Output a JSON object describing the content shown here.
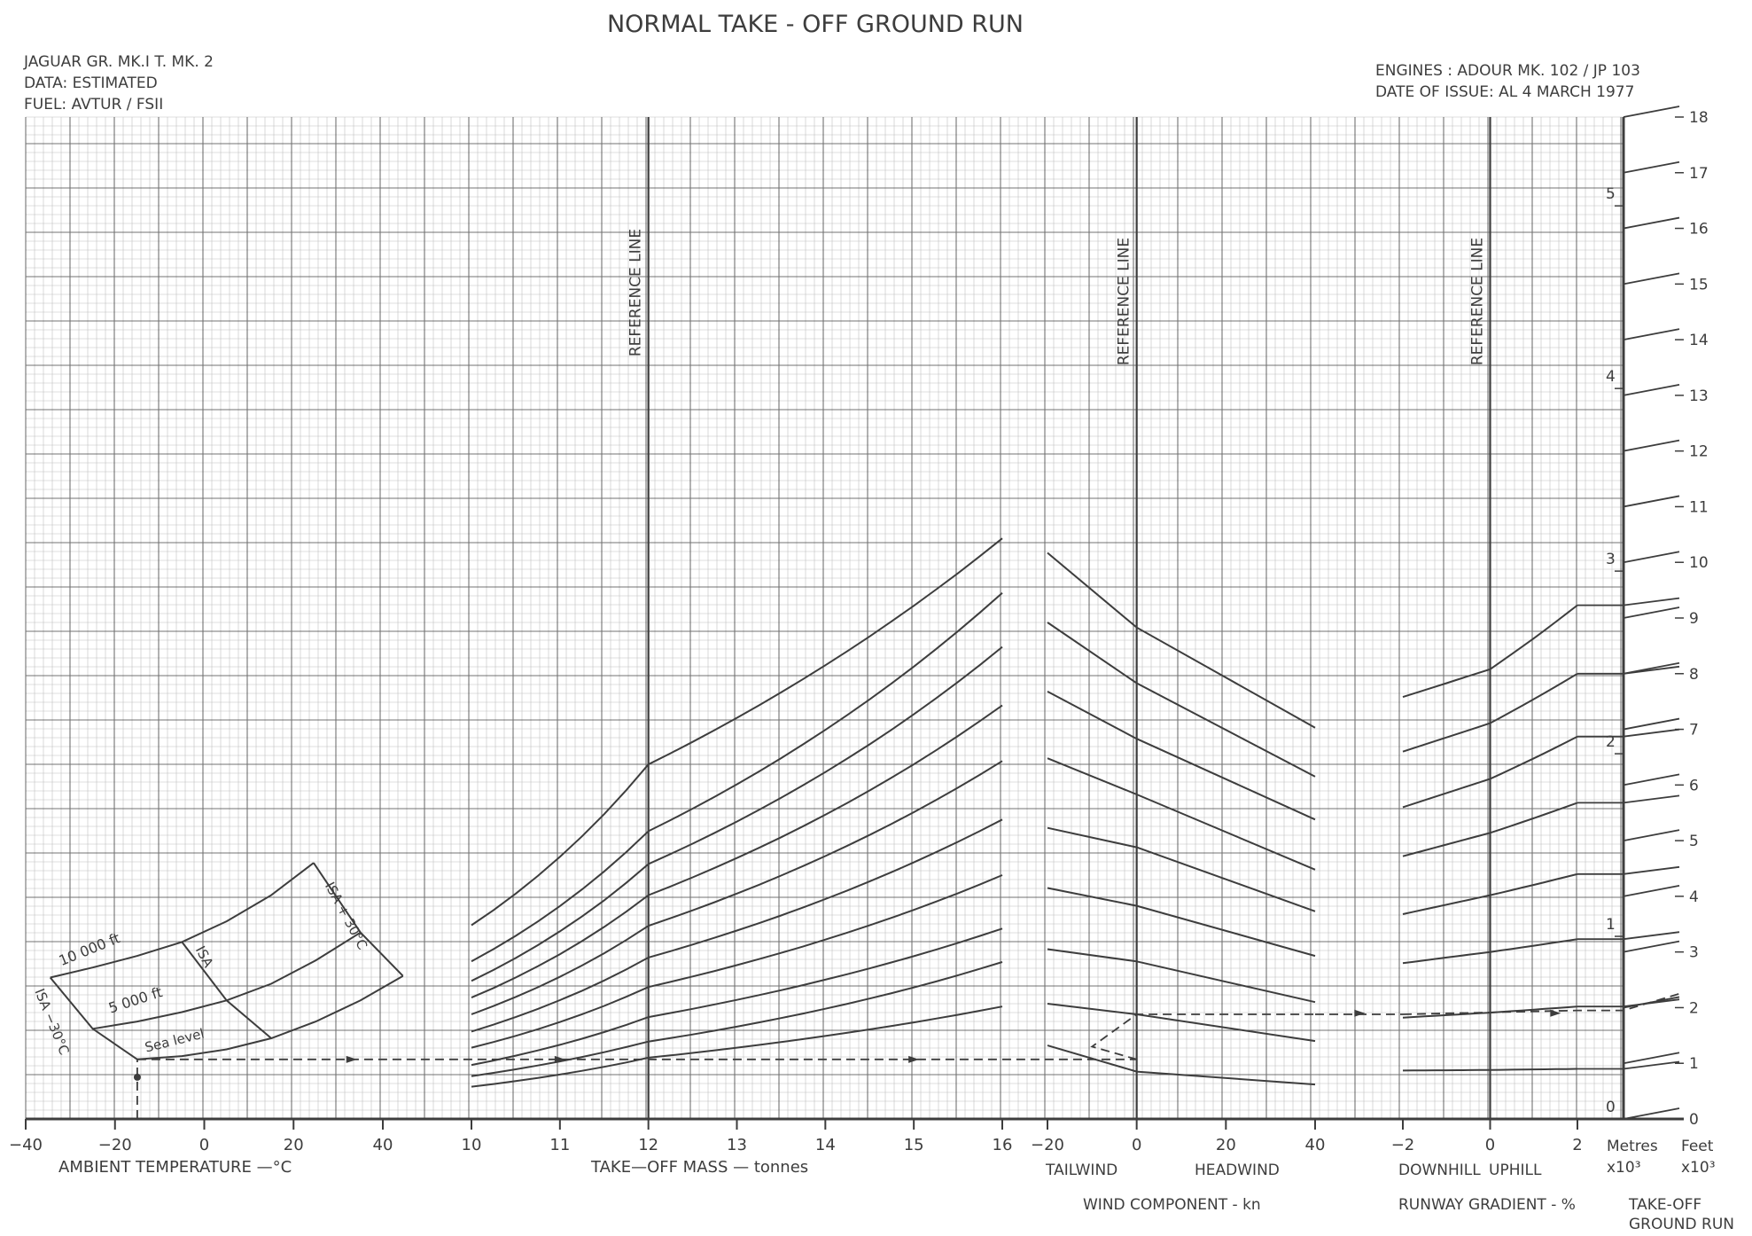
{
  "title": "NORMAL  TAKE - OFF  GROUND  RUN",
  "header_left": [
    "JAGUAR  GR. MK.I   T. MK. 2",
    "DATA: ESTIMATED",
    "FUEL: AVTUR / FSII"
  ],
  "header_right": [
    "ENGINES :  ADOUR   MK. 102 / JP 103",
    "DATE  OF  ISSUE:  AL 4    MARCH  1977"
  ],
  "reference_line_label": "REFERENCE   LINE",
  "colors": {
    "ink": "#3d3d3d",
    "grid_minor": "#8a8a8a",
    "grid_major": "#444444"
  },
  "chart_data": [
    {
      "type": "line",
      "panel": "temperature",
      "xlabel": "AMBIENT  TEMPERATURE  —°C",
      "xlim": [
        -40,
        45
      ],
      "x_ticks": [
        "−40",
        "−20",
        "0",
        "20",
        "40"
      ],
      "series": [
        {
          "name": "Sea  level",
          "points": [
            [
              -15,
              1.07
            ],
            [
              -5,
              1.13
            ],
            [
              5,
              1.25
            ],
            [
              15,
              1.45
            ],
            [
              25,
              1.75
            ],
            [
              35,
              2.13
            ],
            [
              44.5,
              2.57
            ]
          ]
        },
        {
          "name": "5 000  ft",
          "points": [
            [
              -25,
              1.62
            ],
            [
              -15,
              1.75
            ],
            [
              -5,
              1.92
            ],
            [
              5,
              2.13
            ],
            [
              15,
              2.43
            ],
            [
              25,
              2.85
            ],
            [
              35,
              3.35
            ]
          ]
        },
        {
          "name": "10 000  ft",
          "points": [
            [
              -34.5,
              2.54
            ],
            [
              -25,
              2.72
            ],
            [
              -15,
              2.93
            ],
            [
              -5,
              3.18
            ],
            [
              5,
              3.55
            ],
            [
              15,
              4.02
            ],
            [
              24.5,
              4.6
            ]
          ]
        }
      ],
      "isa_lines": [
        {
          "name": "ISA −30°C",
          "points": [
            [
              -34.5,
              2.54
            ],
            [
              -25,
              1.62
            ],
            [
              -15,
              1.07
            ]
          ]
        },
        {
          "name": "ISA",
          "points": [
            [
              -5,
              3.18
            ],
            [
              5,
              2.13
            ],
            [
              15,
              1.45
            ]
          ]
        },
        {
          "name": "ISA + 30°C",
          "points": [
            [
              24.5,
              4.6
            ],
            [
              35,
              3.35
            ],
            [
              44.5,
              2.57
            ]
          ]
        }
      ],
      "example_path": [
        [
          -15,
          0
        ],
        [
          -15,
          1.07
        ]
      ]
    },
    {
      "type": "line",
      "panel": "mass",
      "xlabel": "TAKE—OFF  MASS  —  tonnes",
      "xlim": [
        10,
        16
      ],
      "x_ticks": [
        "10",
        "11",
        "12",
        "13",
        "14",
        "15",
        "16"
      ],
      "reference_x": 12,
      "series": [
        {
          "left": 0.58,
          "ref": 1.1,
          "right": 2.02
        },
        {
          "left": 0.77,
          "ref": 1.39,
          "right": 2.82
        },
        {
          "left": 0.97,
          "ref": 1.83,
          "right": 3.42
        },
        {
          "left": 1.28,
          "ref": 2.37,
          "right": 4.38
        },
        {
          "left": 1.57,
          "ref": 2.9,
          "right": 5.38
        },
        {
          "left": 1.88,
          "ref": 3.47,
          "right": 6.43
        },
        {
          "left": 2.18,
          "ref": 4.02,
          "right": 7.43
        },
        {
          "left": 2.48,
          "ref": 4.58,
          "right": 8.48
        },
        {
          "left": 2.83,
          "ref": 5.17,
          "right": 9.45
        },
        {
          "left": 3.48,
          "ref": 6.37,
          "right": 10.43
        }
      ],
      "example_path": [
        [
          10,
          1.07
        ],
        [
          16,
          1.07
        ]
      ]
    },
    {
      "type": "line",
      "panel": "wind",
      "xlabel": "WIND  COMPONENT - kn",
      "xlim": [
        -20,
        40
      ],
      "x_ticks": [
        "−20",
        "0",
        "20",
        "40"
      ],
      "side_labels": [
        "TAILWIND",
        "HEADWIND"
      ],
      "reference_x": 0,
      "series": [
        {
          "tail": 1.32,
          "ref": 0.85,
          "head": 0.62
        },
        {
          "tail": 2.07,
          "ref": 1.88,
          "head": 1.4
        },
        {
          "tail": 3.05,
          "ref": 2.83,
          "head": 2.1
        },
        {
          "tail": 4.15,
          "ref": 3.83,
          "head": 2.93
        },
        {
          "tail": 5.23,
          "ref": 4.88,
          "head": 3.73
        },
        {
          "tail": 6.48,
          "ref": 5.83,
          "head": 4.48
        },
        {
          "tail": 7.68,
          "ref": 6.83,
          "head": 5.38
        },
        {
          "tail": 8.92,
          "ref": 7.83,
          "head": 6.15
        },
        {
          "tail": 10.17,
          "ref": 8.83,
          "head": 7.03
        }
      ],
      "example_path": [
        [
          0,
          1.07
        ],
        [
          -10,
          1.3
        ],
        [
          0,
          1.88
        ],
        [
          40,
          1.88
        ]
      ]
    },
    {
      "type": "line",
      "panel": "gradient",
      "xlabel": "RUNWAY  GRADIENT - %",
      "xlim": [
        -2,
        2
      ],
      "x_ticks": [
        "−2",
        "0",
        "2"
      ],
      "side_labels": [
        "DOWNHILL",
        "UPHILL"
      ],
      "reference_x": 0,
      "series": [
        {
          "left": 0.87,
          "ref": 0.88,
          "right": 0.9
        },
        {
          "left": 1.82,
          "ref": 1.91,
          "right": 2.02
        },
        {
          "left": 2.8,
          "ref": 3.0,
          "right": 3.23
        },
        {
          "left": 3.68,
          "ref": 4.02,
          "right": 4.4
        },
        {
          "left": 4.72,
          "ref": 5.14,
          "right": 5.68
        },
        {
          "left": 5.6,
          "ref": 6.11,
          "right": 6.87
        },
        {
          "left": 6.6,
          "ref": 7.11,
          "right": 8.0
        },
        {
          "left": 7.58,
          "ref": 8.08,
          "right": 9.23
        }
      ],
      "example_path": [
        [
          -2,
          1.88
        ],
        [
          2,
          1.95
        ]
      ]
    },
    {
      "type": "line",
      "panel": "ground_run_scale",
      "xlabel": "TAKE-OFF\nGROUND  RUN",
      "metres_label": "Metres\nx10³",
      "feet_label": "Feet\nx10³",
      "metres_ticks": [
        "0",
        "1",
        "2",
        "3",
        "4",
        "5"
      ],
      "feet_ticks": [
        "0",
        "1",
        "2",
        "3",
        "4",
        "5",
        "6",
        "7",
        "8",
        "9",
        "10",
        "11",
        "12",
        "13",
        "14",
        "15",
        "16",
        "17",
        "18"
      ],
      "ylim_feet": [
        0,
        18
      ]
    }
  ]
}
